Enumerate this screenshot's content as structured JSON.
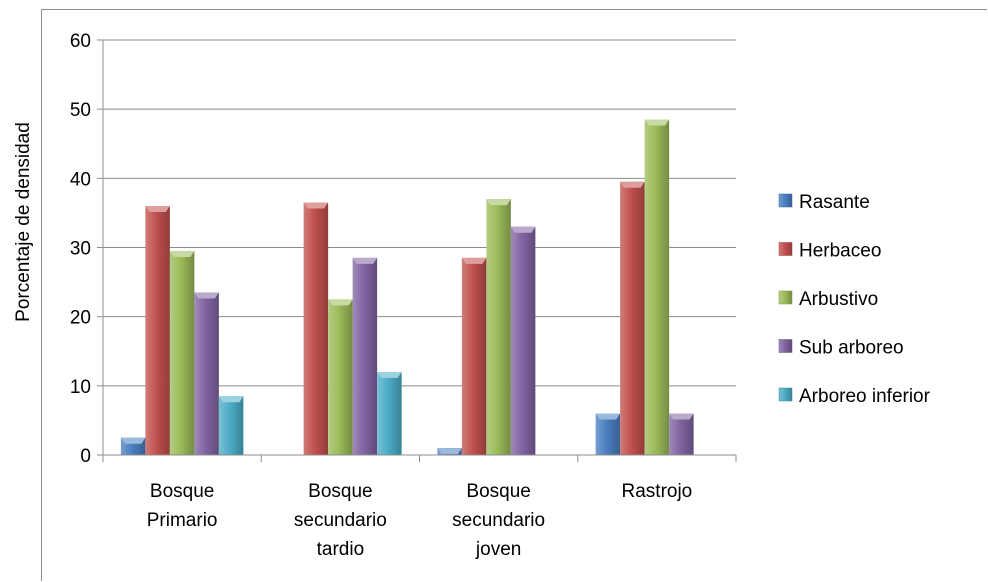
{
  "chart_data": {
    "type": "bar",
    "title": "",
    "xlabel": "",
    "ylabel": "Porcentaje de densidad",
    "ylim": [
      0,
      60
    ],
    "yticks": [
      0,
      10,
      20,
      30,
      40,
      50,
      60
    ],
    "grid": true,
    "legend_position": "right",
    "categories": [
      [
        "Bosque",
        "Primario"
      ],
      [
        "Bosque",
        "secundario",
        "tardio"
      ],
      [
        "Bosque",
        "secundario",
        "joven"
      ],
      [
        "Rastrojo"
      ]
    ],
    "series": [
      {
        "name": "Rasante",
        "color": "#4a7fc1",
        "values": [
          2.5,
          0,
          1,
          6
        ]
      },
      {
        "name": "Herbaceo",
        "color": "#c0504d",
        "values": [
          36,
          36.5,
          28.5,
          39.5
        ]
      },
      {
        "name": "Arbustivo",
        "color": "#9bbb59",
        "values": [
          29.5,
          22.5,
          37,
          48.5
        ]
      },
      {
        "name": "Sub arboreo",
        "color": "#8064a2",
        "values": [
          23.5,
          28.5,
          33,
          6
        ]
      },
      {
        "name": "Arboreo inferior",
        "color": "#4bacc6",
        "values": [
          8.5,
          12,
          0,
          0
        ]
      }
    ]
  }
}
